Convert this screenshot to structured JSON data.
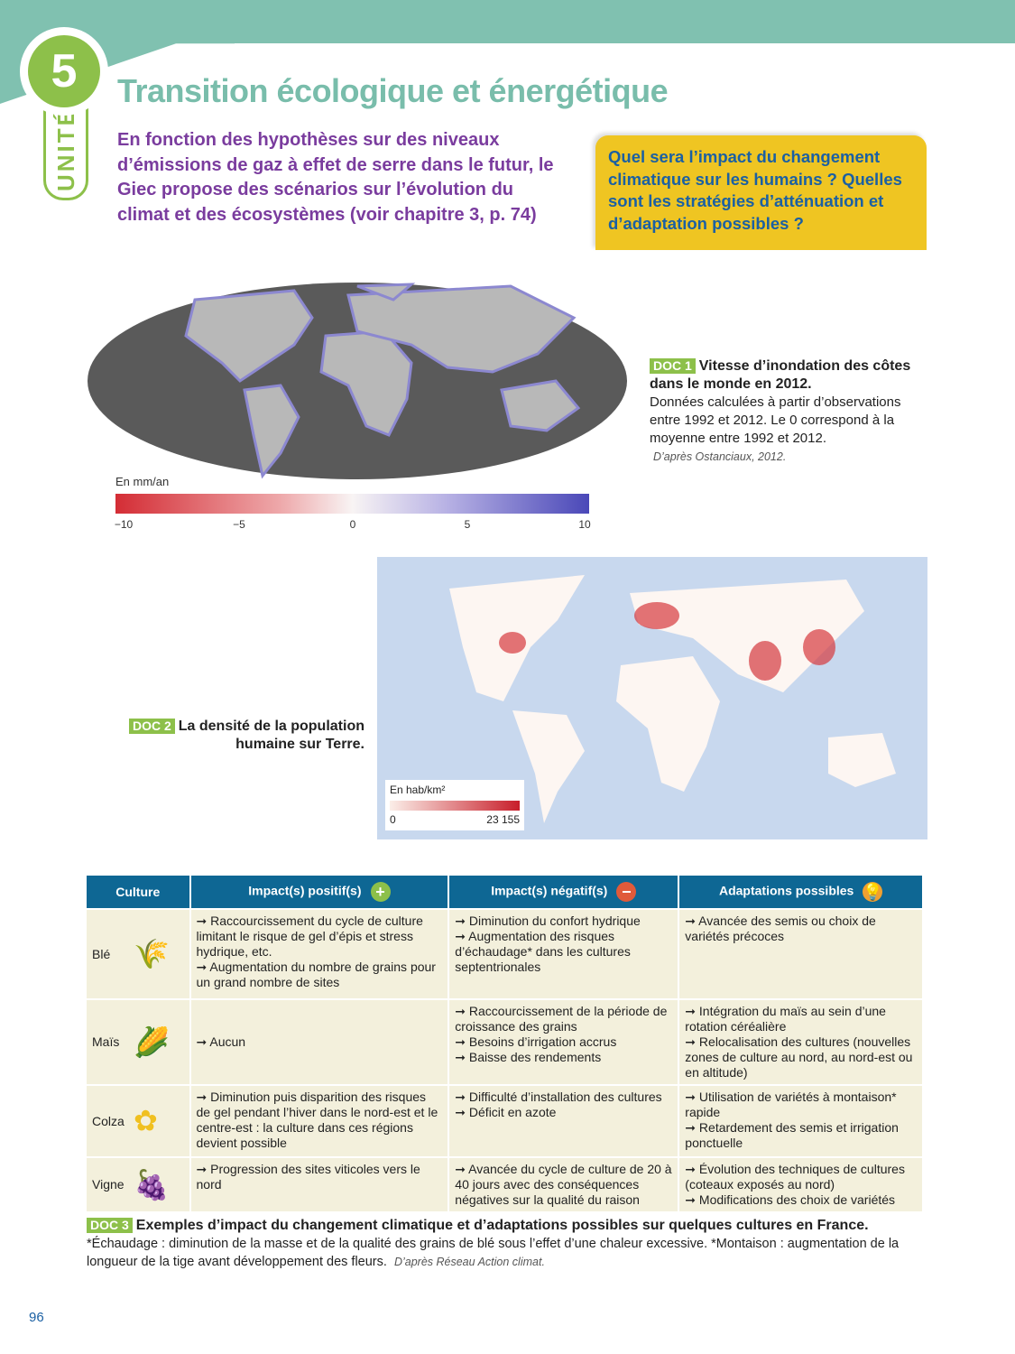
{
  "unit": {
    "number": "5",
    "label": "UNITÉ"
  },
  "title": "Transition écologique et énergétique",
  "intro": "En fonction des hypothèses sur des niveaux d’émissions de gaz à effet de serre dans le futur, le Giec propose des scénarios sur l’évolution du climat et des écosystèmes (voir chapitre 3, p. 74)",
  "question": "Quel sera l’impact du changement climatique sur les humains ? Quelles sont les stratégies d’atténuation et d’adaptation possibles ?",
  "doc1": {
    "tag": "DOC 1",
    "title": "Vitesse d’inondation des côtes dans le monde en 2012.",
    "text": "Données calculées à partir d’observations entre 1992 et 2012. Le 0 correspond à la moyenne entre 1992 et 2012.",
    "source": "D’après Ostanciaux, 2012.",
    "legend_label": "En mm/an",
    "ticks": [
      "−10",
      "−5",
      "0",
      "5",
      "10"
    ],
    "colors": {
      "negative": "#d42d35",
      "zero": "#f8f4f4",
      "positive": "#4a48b8"
    }
  },
  "doc2": {
    "tag": "DOC 2",
    "title": "La densité de la population humaine sur Terre.",
    "legend_label": "En hab/km²",
    "min": "0",
    "max": "23 155",
    "colors": {
      "low": "#fbeee8",
      "high": "#c81e2a",
      "ocean": "#c8d8ee"
    }
  },
  "table": {
    "headers": [
      "Culture",
      "Impact(s) positif(s)",
      "Impact(s) négatif(s)",
      "Adaptations possibles"
    ],
    "rows": [
      {
        "crop": "Blé",
        "icon": "wheat-icon",
        "positive": [
          "Raccourcissement du cycle de culture limitant le risque de gel d’épis et stress hydrique, etc.",
          "Augmentation du nombre de grains pour un grand nombre de sites"
        ],
        "negative": [
          "Diminution du confort hydrique",
          "Augmentation des risques d’échaudage* dans les cultures septentrionales"
        ],
        "adaptations": [
          "Avancée des semis ou choix de variétés précoces"
        ]
      },
      {
        "crop": "Maïs",
        "icon": "corn-icon",
        "positive": [
          "Aucun"
        ],
        "negative": [
          "Raccourcissement de la période de croissance des grains",
          "Besoins d’irrigation accrus",
          "Baisse des rendements"
        ],
        "adaptations": [
          "Intégration du maïs au sein d’une rotation céréalière",
          "Relocalisation des cultures (nouvelles zones de culture au nord, au nord-est ou en altitude)"
        ]
      },
      {
        "crop": "Colza",
        "icon": "rapeseed-icon",
        "positive": [
          "Diminution puis disparition des risques de gel pendant l’hiver dans le nord-est et le centre-est : la culture dans ces régions devient possible"
        ],
        "negative": [
          "Difficulté d’installation des cultures",
          "Déficit en azote"
        ],
        "adaptations": [
          "Utilisation de variétés à montaison* rapide",
          "Retardement des semis et irrigation ponctuelle"
        ]
      },
      {
        "crop": "Vigne",
        "icon": "grape-icon",
        "positive": [
          "Progression des sites viticoles vers le nord"
        ],
        "negative": [
          "Avancée du cycle de culture de 20 à 40 jours avec des conséquences négatives sur la qualité du raison"
        ],
        "adaptations": [
          "Évolution des techniques de cultures (coteaux exposés au nord)",
          "Modifications des choix de variétés"
        ]
      }
    ]
  },
  "doc3": {
    "tag": "DOC 3",
    "title": "Exemples d’impact du changement climatique et d’adaptations possibles sur quelques cultures en France.",
    "footnote": "*Échaudage : diminution de la masse et de la qualité des grains de blé sous l’effet d’une chaleur excessive. *Montaison : augmentation de la longueur de la tige avant développement des fleurs.",
    "source": "D’après Réseau Action climat."
  },
  "page_number": "96"
}
